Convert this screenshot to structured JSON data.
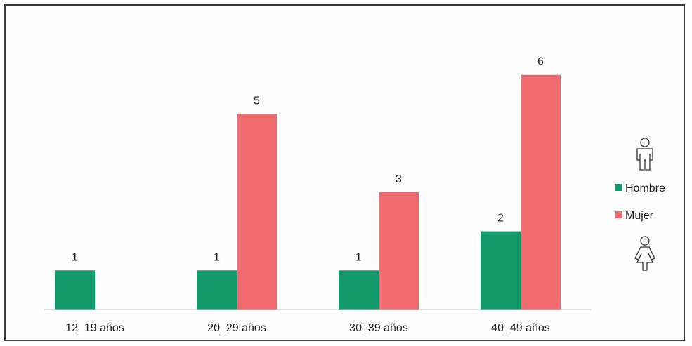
{
  "chart_data": {
    "type": "bar",
    "categories": [
      "12_19 años",
      "20_29 años",
      "30_39 años",
      "40_49 años"
    ],
    "series": [
      {
        "name": "Hombre",
        "values": [
          1,
          1,
          1,
          2
        ],
        "color": "#129a6b"
      },
      {
        "name": "Mujer",
        "values": [
          null,
          5,
          3,
          6
        ],
        "color": "#f06a6e"
      }
    ],
    "ylim": [
      0,
      6.3
    ],
    "grid": false,
    "legend": "right",
    "legend_icons": [
      "male-figure-icon",
      "female-figure-icon"
    ]
  }
}
